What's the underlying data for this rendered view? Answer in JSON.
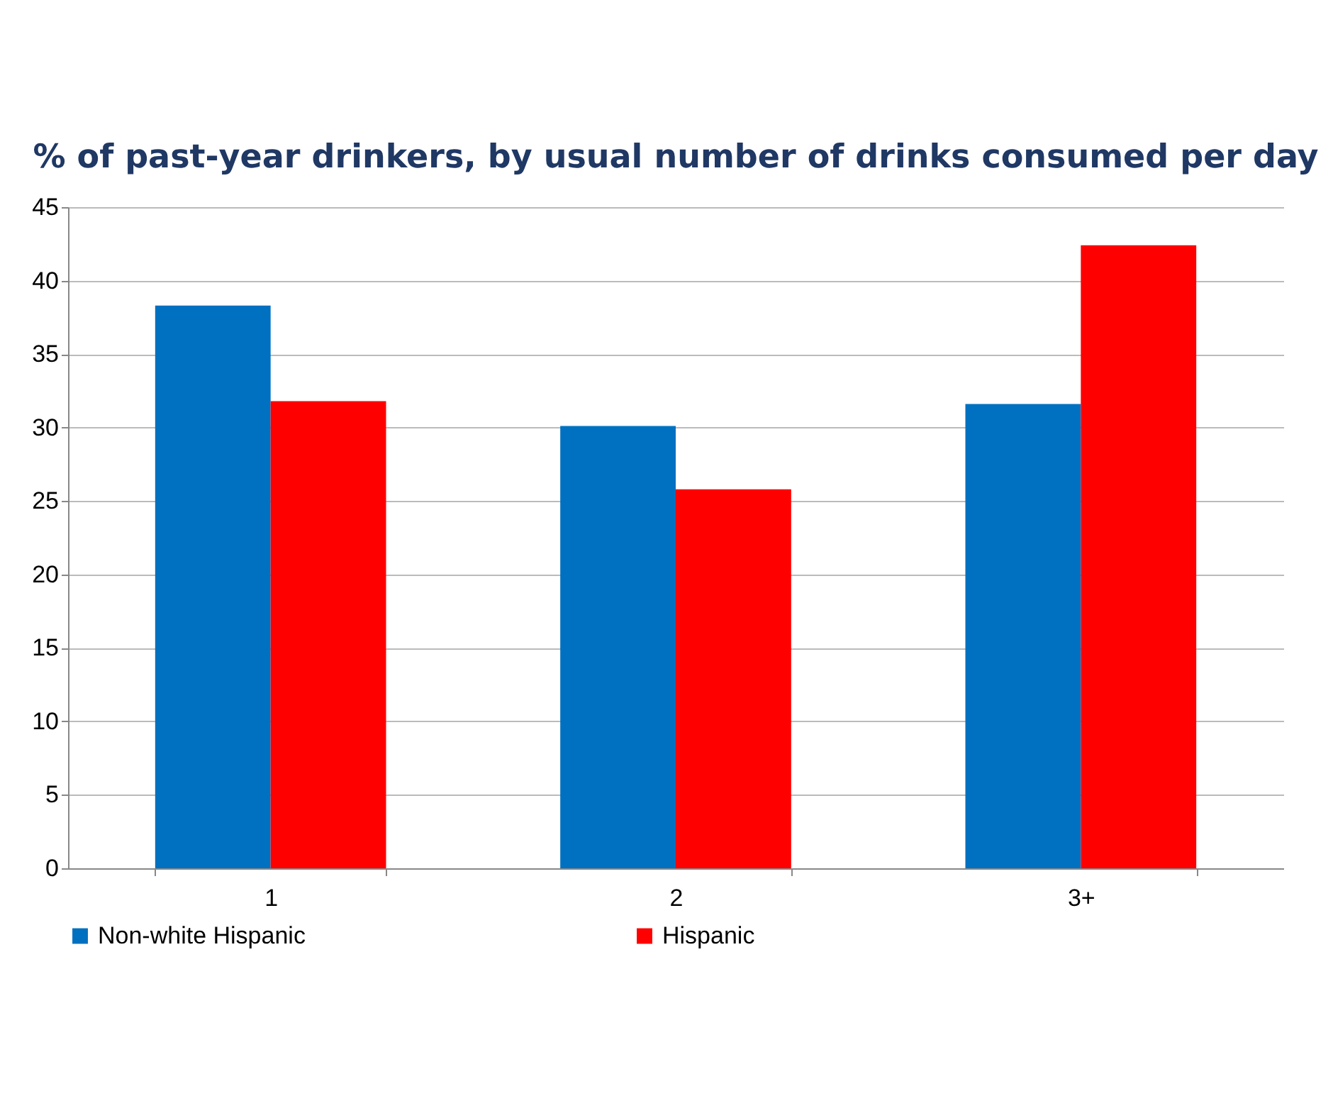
{
  "chart_data": {
    "type": "bar",
    "title": "% of past-year drinkers, by usual number of drinks consumed per day",
    "categories": [
      "1",
      "2",
      "3+"
    ],
    "series": [
      {
        "name": "Non-white Hispanic",
        "color": "#0070c0",
        "values": [
          38.3,
          30.1,
          31.6
        ]
      },
      {
        "name": "Hispanic",
        "color": "#ff0000",
        "values": [
          31.8,
          25.8,
          42.4
        ]
      }
    ],
    "ylim": [
      0,
      45
    ],
    "yticks": [
      0,
      5,
      10,
      15,
      20,
      25,
      30,
      35,
      40,
      45
    ],
    "grid": "y",
    "legend": "bottom"
  }
}
